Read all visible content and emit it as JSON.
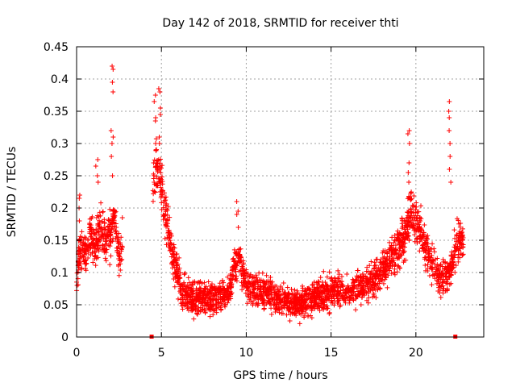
{
  "chart_data": {
    "type": "scatter",
    "title": "Day 142 of 2018, SRMTID for receiver thti",
    "xlabel": "GPS time / hours",
    "ylabel": "SRMTID / TECUs",
    "xlim": [
      0,
      24
    ],
    "ylim": [
      0,
      0.45
    ],
    "xticks": [
      0,
      5,
      10,
      15,
      20
    ],
    "xtick_labels": [
      "0",
      "5",
      "10",
      "15",
      "20"
    ],
    "yticks": [
      0,
      0.05,
      0.1,
      0.15,
      0.2,
      0.25,
      0.3,
      0.35,
      0.4,
      0.45
    ],
    "ytick_labels": [
      "0",
      "0.05",
      "0.1",
      "0.15",
      "0.2",
      "0.25",
      "0.3",
      "0.35",
      "0.4",
      "0.45"
    ],
    "grid": true,
    "marker": "+",
    "color": "#ff0000",
    "envelope": {
      "x": [
        0,
        0.2,
        0.5,
        0.8,
        1.1,
        1.4,
        1.7,
        2.0,
        2.2,
        2.5,
        2.7,
        4.5,
        4.7,
        5.0,
        5.3,
        5.7,
        6.2,
        7,
        8,
        9,
        9.3,
        9.6,
        10,
        11,
        12,
        13,
        14,
        15,
        16,
        17,
        18,
        18.5,
        19,
        19.5,
        19.7,
        20,
        20.3,
        20.6,
        21,
        21.5,
        22,
        22.2,
        22.5,
        22.8
      ],
      "y": [
        0.09,
        0.14,
        0.12,
        0.16,
        0.14,
        0.17,
        0.15,
        0.16,
        0.19,
        0.13,
        0.14,
        0.22,
        0.27,
        0.23,
        0.18,
        0.12,
        0.07,
        0.06,
        0.06,
        0.07,
        0.11,
        0.12,
        0.08,
        0.07,
        0.06,
        0.05,
        0.06,
        0.07,
        0.07,
        0.08,
        0.1,
        0.12,
        0.14,
        0.17,
        0.2,
        0.18,
        0.16,
        0.13,
        0.11,
        0.09,
        0.1,
        0.12,
        0.15,
        0.15
      ],
      "spread": 0.03,
      "density": 260
    },
    "spikes": [
      {
        "x": 0.2,
        "y": [
          0.22,
          0.215,
          0.2,
          0.18
        ]
      },
      {
        "x": 1.2,
        "y": [
          0.275,
          0.265,
          0.25,
          0.24
        ]
      },
      {
        "x": 2.1,
        "y": [
          0.42,
          0.415,
          0.395,
          0.38,
          0.32,
          0.31,
          0.3,
          0.28,
          0.25
        ]
      },
      {
        "x": 4.6,
        "y": [
          0.375,
          0.365,
          0.34,
          0.335,
          0.3,
          0.29,
          0.27
        ]
      },
      {
        "x": 4.9,
        "y": [
          0.385,
          0.38,
          0.355,
          0.345,
          0.31,
          0.3
        ]
      },
      {
        "x": 9.5,
        "y": [
          0.21,
          0.195,
          0.19,
          0.17
        ]
      },
      {
        "x": 19.6,
        "y": [
          0.32,
          0.315,
          0.3,
          0.27,
          0.255,
          0.24
        ]
      },
      {
        "x": 22.0,
        "y": [
          0.365,
          0.35,
          0.34,
          0.32,
          0.3,
          0.28,
          0.26,
          0.24
        ]
      }
    ],
    "zero_markers": [
      4.4,
      22.3
    ]
  }
}
